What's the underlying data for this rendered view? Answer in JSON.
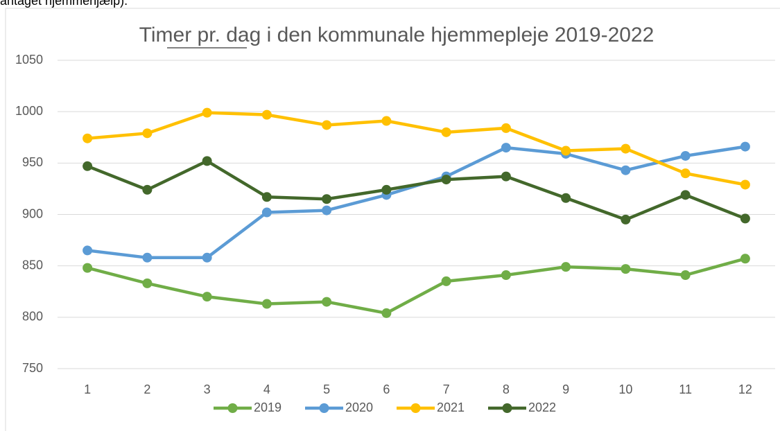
{
  "caption": "antaget hjemmehjælp).",
  "chart_data": {
    "type": "line",
    "title": "Timer pr. dag i den kommunale hjemmepleje 2019-2022",
    "categories": [
      "1",
      "2",
      "3",
      "4",
      "5",
      "6",
      "7",
      "8",
      "9",
      "10",
      "11",
      "12"
    ],
    "series": [
      {
        "name": "2019",
        "color": "#70ad47",
        "values": [
          848,
          833,
          820,
          813,
          815,
          804,
          835,
          841,
          849,
          847,
          841,
          857
        ]
      },
      {
        "name": "2020",
        "color": "#5b9bd5",
        "values": [
          865,
          858,
          858,
          902,
          904,
          919,
          937,
          965,
          959,
          943,
          957,
          966
        ]
      },
      {
        "name": "2021",
        "color": "#ffc000",
        "values": [
          974,
          979,
          999,
          997,
          987,
          991,
          980,
          984,
          962,
          964,
          940,
          929
        ]
      },
      {
        "name": "2022",
        "color": "#43682b",
        "values": [
          947,
          924,
          952,
          917,
          915,
          924,
          934,
          937,
          916,
          895,
          919,
          896
        ]
      }
    ],
    "ylim": [
      750,
      1050
    ],
    "yticks": [
      750,
      800,
      850,
      900,
      950,
      1000,
      1050
    ],
    "grid": true,
    "legend": "bottom"
  }
}
